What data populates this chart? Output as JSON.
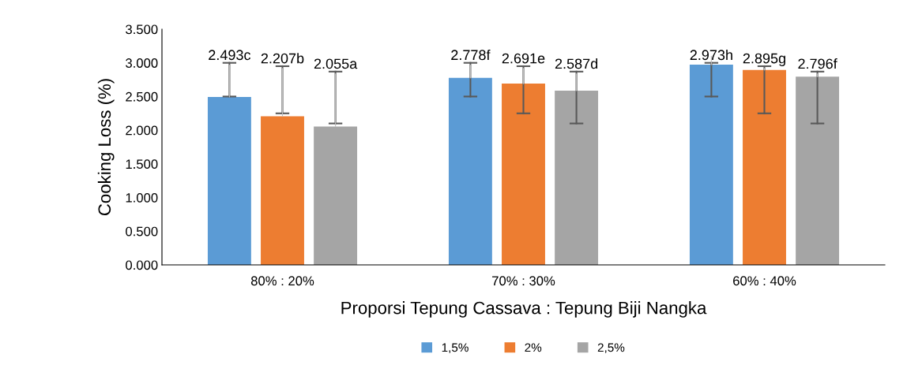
{
  "chart_data": {
    "type": "bar",
    "xlabel": "Proporsi Tepung Cassava : Tepung Biji Nangka",
    "ylabel": "Cooking Loss (%)",
    "categories": [
      "80% : 20%",
      "70% : 30%",
      "60% : 40%"
    ],
    "series": [
      {
        "name": "1,5%",
        "color": "#5b9bd5",
        "values": [
          2.493,
          2.778,
          2.973
        ],
        "value_labels": [
          "2.493c",
          "2.778f",
          "2.973h"
        ],
        "errors": [
          [
            2.5,
            3.0
          ],
          [
            2.5,
            3.0
          ],
          [
            2.5,
            3.0
          ]
        ]
      },
      {
        "name": "2%",
        "color": "#ed7d31",
        "values": [
          2.207,
          2.691,
          2.895
        ],
        "value_labels": [
          "2.207b",
          "2.691e",
          "2.895g"
        ],
        "errors": [
          [
            2.25,
            2.95
          ],
          [
            2.25,
            2.95
          ],
          [
            2.25,
            2.95
          ]
        ]
      },
      {
        "name": "2,5%",
        "color": "#a5a5a5",
        "values": [
          2.055,
          2.587,
          2.796
        ],
        "value_labels": [
          "2.055a",
          "2.587d",
          "2.796f"
        ],
        "errors": [
          [
            2.1,
            2.87
          ],
          [
            2.1,
            2.87
          ],
          [
            2.1,
            2.87
          ]
        ]
      }
    ],
    "ylim": [
      0,
      3.5
    ],
    "yticks": [
      {
        "value": 0,
        "label": "0.000"
      },
      {
        "value": 0.5,
        "label": "0.500"
      },
      {
        "value": 1,
        "label": "1.000"
      },
      {
        "value": 1.5,
        "label": "1.500"
      },
      {
        "value": 2,
        "label": "2.000"
      },
      {
        "value": 2.5,
        "label": "2.500"
      },
      {
        "value": 3,
        "label": "3.000"
      },
      {
        "value": 3.5,
        "label": "3.500"
      }
    ],
    "grid": false,
    "legend": "bottom"
  }
}
